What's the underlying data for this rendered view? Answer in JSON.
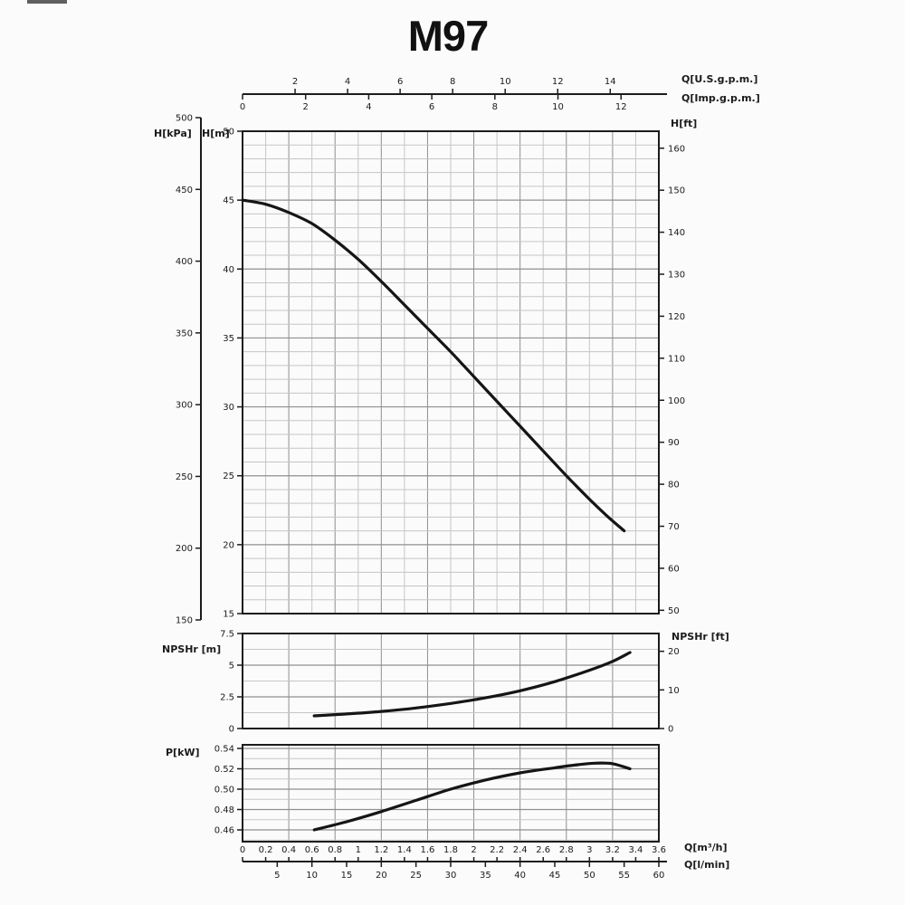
{
  "title": "M97",
  "chart_data": {
    "type": "line",
    "title": "M97",
    "x_axis_unit": "Q[m³/h]",
    "x_range_m3h": [
      0,
      3.6
    ],
    "grid": "on",
    "colors": {
      "curve": "#151515",
      "grid_minor": "#c6c6c6",
      "grid_major": "#8f8f8f",
      "frame": "#1c1c1c",
      "text": "#1b1b1b"
    },
    "top_axes": {
      "us_gpm": {
        "label": "Q[U.S.g.p.m.]",
        "ticks": [
          2,
          4,
          6,
          8,
          10,
          12,
          14
        ],
        "per_m3h": 4.4029
      },
      "imp_gpm": {
        "label": "Q[Imp.g.p.m.]",
        "ticks": [
          0,
          2,
          4,
          6,
          8,
          10,
          12
        ],
        "per_m3h": 3.6661
      }
    },
    "bottom_axes": {
      "m3h": {
        "label": "Q[m³/h]",
        "ticks": [
          0,
          0.2,
          0.4,
          0.6,
          0.8,
          1,
          1.2,
          1.4,
          1.6,
          1.8,
          2,
          2.2,
          2.4,
          2.6,
          2.8,
          3,
          3.2,
          3.4,
          3.6
        ]
      },
      "lmin": {
        "label": "Q[l/min]",
        "ticks": [
          5,
          10,
          15,
          20,
          25,
          30,
          35,
          40,
          45,
          50,
          55,
          60
        ],
        "m3h_per_unit": 0.06
      }
    },
    "charts": [
      {
        "id": "head",
        "name": "H-Q curve",
        "left_axis": {
          "label": "H[m]",
          "ticks": [
            15,
            20,
            25,
            30,
            35,
            40,
            45,
            50
          ],
          "range": [
            15,
            50
          ]
        },
        "outer_left_axis": {
          "label": "H[kPa]",
          "ticks": [
            150,
            200,
            250,
            300,
            350,
            400,
            450,
            500
          ],
          "range": [
            150,
            500
          ]
        },
        "right_axis": {
          "label": "H[ft]",
          "ticks": [
            50,
            60,
            70,
            80,
            90,
            100,
            110,
            120,
            130,
            140,
            150,
            160
          ],
          "ft_per_m": 3.2808
        },
        "y_minor_step": 1,
        "series": [
          {
            "name": "head_m_vs_q_m3h",
            "points": [
              [
                0,
                45
              ],
              [
                0.2,
                44.7
              ],
              [
                0.4,
                44.1
              ],
              [
                0.6,
                43.3
              ],
              [
                0.8,
                42.1
              ],
              [
                1.0,
                40.7
              ],
              [
                1.2,
                39.1
              ],
              [
                1.4,
                37.4
              ],
              [
                1.6,
                35.7
              ],
              [
                1.8,
                34.0
              ],
              [
                2.0,
                32.2
              ],
              [
                2.2,
                30.4
              ],
              [
                2.4,
                28.6
              ],
              [
                2.6,
                26.8
              ],
              [
                2.8,
                25.0
              ],
              [
                3.0,
                23.3
              ],
              [
                3.15,
                22.1
              ],
              [
                3.3,
                21.0
              ]
            ]
          }
        ]
      },
      {
        "id": "npshr",
        "name": "NPSHr curve",
        "left_axis": {
          "label": "NPSHr [m]",
          "ticks": [
            0,
            2.5,
            5,
            7.5
          ],
          "range": [
            0,
            7.5
          ]
        },
        "right_axis": {
          "label": "NPSHr [ft]",
          "ticks": [
            0,
            10,
            20
          ],
          "ft_per_m": 3.2808
        },
        "y_minor_step": 1.25,
        "series": [
          {
            "name": "npshr_m_vs_q_m3h",
            "points": [
              [
                0.62,
                1.0
              ],
              [
                0.9,
                1.15
              ],
              [
                1.2,
                1.35
              ],
              [
                1.5,
                1.62
              ],
              [
                1.8,
                1.98
              ],
              [
                2.1,
                2.42
              ],
              [
                2.4,
                2.98
              ],
              [
                2.7,
                3.7
              ],
              [
                3.0,
                4.6
              ],
              [
                3.2,
                5.3
              ],
              [
                3.35,
                6.0
              ]
            ]
          }
        ]
      },
      {
        "id": "power",
        "name": "P-Q curve",
        "left_axis": {
          "label": "P[kW]",
          "ticks": [
            0.46,
            0.48,
            0.5,
            0.52,
            0.54
          ],
          "range": [
            0.46,
            0.54
          ],
          "decimals": 2
        },
        "y_minor_step": 0.01,
        "series": [
          {
            "name": "power_kw_vs_q_m3h",
            "points": [
              [
                0.62,
                0.46
              ],
              [
                0.9,
                0.468
              ],
              [
                1.2,
                0.478
              ],
              [
                1.5,
                0.489
              ],
              [
                1.8,
                0.5
              ],
              [
                2.1,
                0.509
              ],
              [
                2.4,
                0.516
              ],
              [
                2.7,
                0.521
              ],
              [
                2.9,
                0.524
              ],
              [
                3.05,
                0.5255
              ],
              [
                3.2,
                0.525
              ],
              [
                3.35,
                0.52
              ]
            ]
          }
        ]
      }
    ]
  }
}
